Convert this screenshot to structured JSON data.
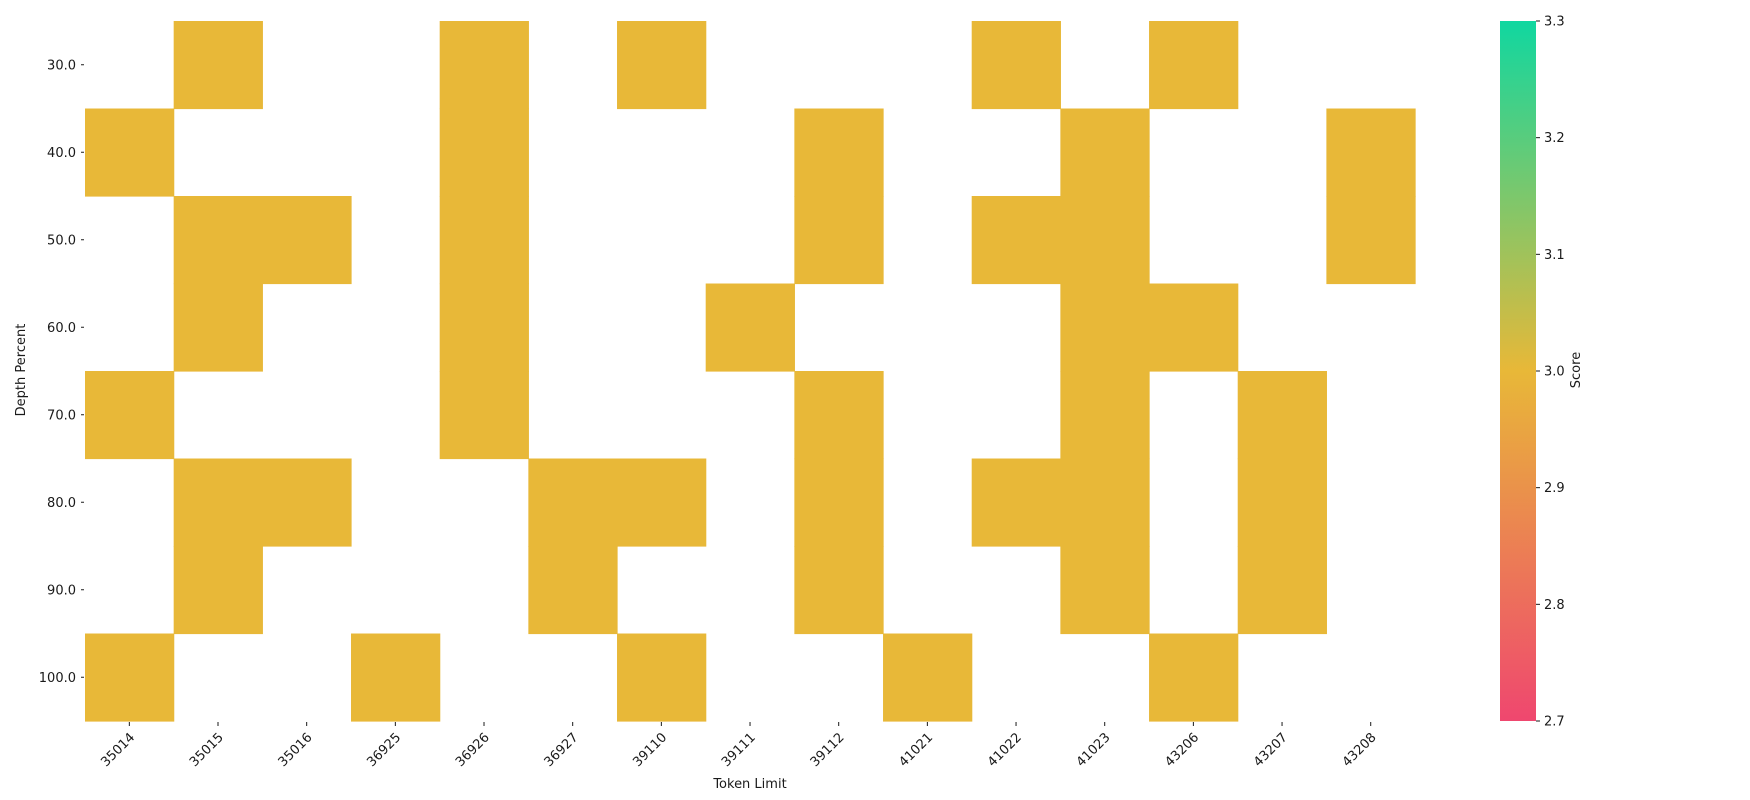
{
  "chart_data": {
    "type": "heatmap",
    "title": "",
    "xlabel": "Token Limit",
    "ylabel": "Depth Percent",
    "x_categories": [
      "35014",
      "35015",
      "35016",
      "36925",
      "36926",
      "36927",
      "39110",
      "39111",
      "39112",
      "41021",
      "41022",
      "41023",
      "43206",
      "43207",
      "43208"
    ],
    "y_categories": [
      "30.0",
      "40.0",
      "50.0",
      "60.0",
      "70.0",
      "80.0",
      "90.0",
      "100.0"
    ],
    "cell_value": 3.0,
    "cells": [
      [
        0,
        1,
        0,
        0,
        1,
        0,
        1,
        0,
        0,
        0,
        1,
        0,
        1,
        0,
        0
      ],
      [
        1,
        0,
        0,
        0,
        1,
        0,
        0,
        0,
        1,
        0,
        0,
        1,
        0,
        0,
        1
      ],
      [
        0,
        1,
        1,
        0,
        1,
        0,
        0,
        0,
        1,
        0,
        1,
        1,
        0,
        0,
        1
      ],
      [
        0,
        1,
        0,
        0,
        1,
        0,
        0,
        1,
        0,
        0,
        0,
        1,
        1,
        0,
        0
      ],
      [
        1,
        0,
        0,
        0,
        1,
        0,
        0,
        0,
        1,
        0,
        0,
        1,
        0,
        1,
        0
      ],
      [
        0,
        1,
        1,
        0,
        0,
        1,
        1,
        0,
        1,
        0,
        1,
        1,
        0,
        1,
        0
      ],
      [
        0,
        1,
        0,
        0,
        0,
        1,
        0,
        0,
        1,
        0,
        0,
        1,
        0,
        1,
        0
      ],
      [
        1,
        0,
        0,
        1,
        0,
        0,
        1,
        0,
        0,
        1,
        0,
        0,
        1,
        0,
        0
      ]
    ],
    "cell_legend": "1 = Score 3.0, 0 = no data",
    "colorbar": {
      "label": "Score",
      "range": [
        2.7,
        3.3
      ],
      "ticks": [
        "2.7",
        "2.8",
        "2.9",
        "3.0",
        "3.1",
        "3.2",
        "3.3"
      ],
      "colors": {
        "low": "#ef476f",
        "mid": "#e8b838",
        "high": "#10d7a0"
      }
    },
    "cell_color": "#e8b838",
    "grid": false
  }
}
